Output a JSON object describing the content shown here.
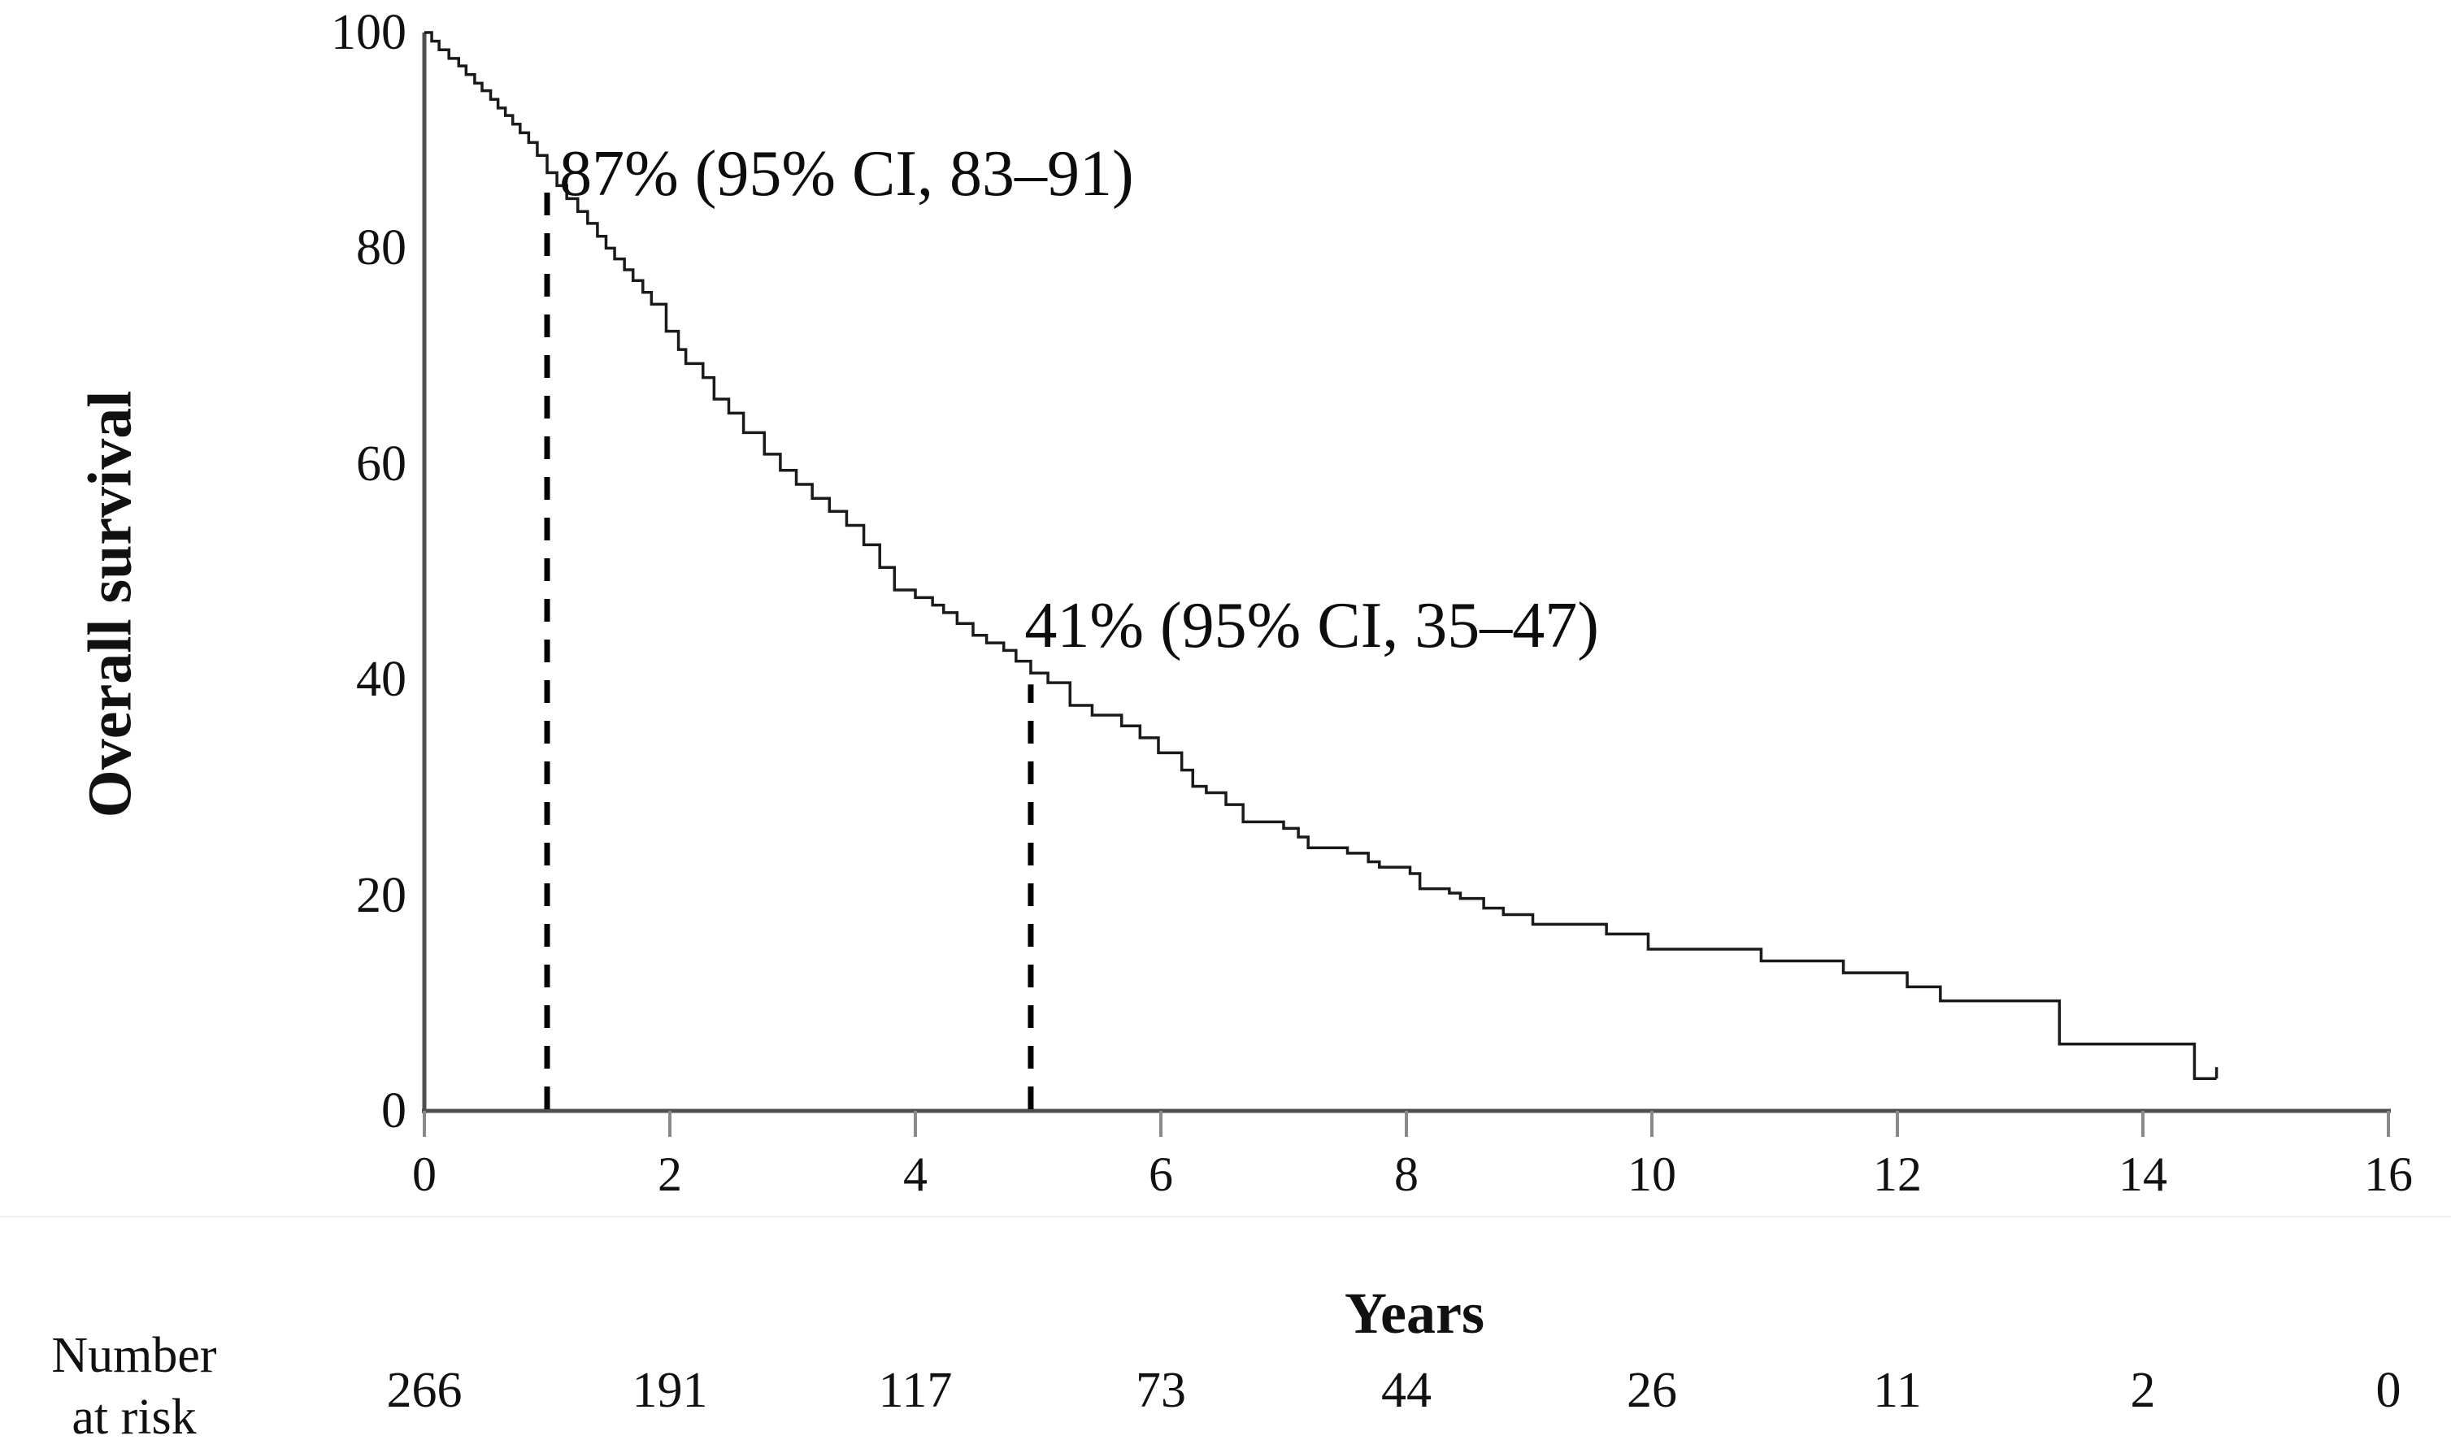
{
  "chart_data": {
    "type": "line",
    "subtype": "kaplan-meier-step",
    "title": "",
    "xlabel": "Years",
    "ylabel": "Overall survival",
    "xlim": [
      0,
      16
    ],
    "ylim": [
      0,
      100
    ],
    "x_ticks": [
      0,
      2,
      4,
      6,
      8,
      10,
      12,
      14,
      16
    ],
    "y_ticks": [
      0,
      20,
      40,
      60,
      80,
      100
    ],
    "grid": false,
    "legend": "none",
    "series_name": "Overall survival",
    "step_points": [
      [
        0,
        100
      ],
      [
        0.06,
        99.2
      ],
      [
        0.12,
        98.4
      ],
      [
        0.2,
        97.6
      ],
      [
        0.28,
        96.9
      ],
      [
        0.34,
        96.1
      ],
      [
        0.41,
        95.3
      ],
      [
        0.47,
        94.6
      ],
      [
        0.54,
        93.8
      ],
      [
        0.6,
        93.0
      ],
      [
        0.66,
        92.3
      ],
      [
        0.72,
        91.5
      ],
      [
        0.78,
        90.7
      ],
      [
        0.85,
        89.8
      ],
      [
        0.92,
        88.6
      ],
      [
        1.0,
        87.0
      ],
      [
        1.08,
        85.8
      ],
      [
        1.16,
        84.6
      ],
      [
        1.25,
        83.4
      ],
      [
        1.33,
        82.3
      ],
      [
        1.41,
        81.1
      ],
      [
        1.48,
        80.0
      ],
      [
        1.55,
        79.0
      ],
      [
        1.63,
        78.0
      ],
      [
        1.7,
        77.0
      ],
      [
        1.78,
        75.9
      ],
      [
        1.85,
        74.8
      ],
      [
        1.97,
        72.3
      ],
      [
        2.07,
        70.6
      ],
      [
        2.13,
        69.3
      ],
      [
        2.27,
        68.0
      ],
      [
        2.36,
        66.0
      ],
      [
        2.48,
        64.7
      ],
      [
        2.6,
        62.9
      ],
      [
        2.77,
        60.9
      ],
      [
        2.9,
        59.4
      ],
      [
        3.03,
        58.1
      ],
      [
        3.16,
        56.8
      ],
      [
        3.3,
        55.6
      ],
      [
        3.44,
        54.3
      ],
      [
        3.58,
        52.5
      ],
      [
        3.71,
        50.4
      ],
      [
        3.83,
        48.3
      ],
      [
        4.0,
        47.6
      ],
      [
        4.14,
        46.9
      ],
      [
        4.23,
        46.2
      ],
      [
        4.34,
        45.2
      ],
      [
        4.47,
        44.1
      ],
      [
        4.58,
        43.4
      ],
      [
        4.72,
        42.7
      ],
      [
        4.82,
        41.7
      ],
      [
        4.94,
        40.6
      ],
      [
        5.08,
        39.7
      ],
      [
        5.26,
        37.6
      ],
      [
        5.44,
        36.7
      ],
      [
        5.68,
        35.7
      ],
      [
        5.83,
        34.6
      ],
      [
        5.98,
        33.2
      ],
      [
        6.17,
        31.6
      ],
      [
        6.26,
        30.1
      ],
      [
        6.37,
        29.5
      ],
      [
        6.53,
        28.4
      ],
      [
        6.67,
        26.8
      ],
      [
        7.0,
        26.2
      ],
      [
        7.12,
        25.4
      ],
      [
        7.2,
        24.4
      ],
      [
        7.52,
        23.9
      ],
      [
        7.69,
        23.1
      ],
      [
        7.78,
        22.6
      ],
      [
        8.03,
        22.0
      ],
      [
        8.11,
        20.6
      ],
      [
        8.35,
        20.2
      ],
      [
        8.44,
        19.7
      ],
      [
        8.63,
        18.8
      ],
      [
        8.79,
        18.2
      ],
      [
        9.03,
        17.3
      ],
      [
        9.63,
        16.4
      ],
      [
        9.97,
        15.0
      ],
      [
        10.89,
        13.9
      ],
      [
        11.56,
        12.8
      ],
      [
        12.08,
        11.5
      ],
      [
        12.35,
        10.2
      ],
      [
        13.32,
        6.2
      ],
      [
        14.42,
        3.0
      ],
      [
        14.6,
        3.0
      ]
    ],
    "annotations": [
      {
        "text": "87% (95% CI, 83–91)",
        "x_year": 1.1,
        "top_pct": 90.3
      },
      {
        "text": "41% (95% CI, 35–47)",
        "x_year": 4.89,
        "top_pct": 48.4
      }
    ],
    "dashed_lines": [
      {
        "x_year": 1.0,
        "top_pct": 87.0
      },
      {
        "x_year": 4.94,
        "top_pct": 40.6
      }
    ],
    "risk_table": {
      "label_line1": "Number",
      "label_line2": "at risk",
      "times": [
        0,
        2,
        4,
        6,
        8,
        10,
        12,
        14,
        16
      ],
      "values": [
        266,
        191,
        117,
        73,
        44,
        26,
        11,
        2,
        0
      ]
    }
  },
  "colors": {
    "curve": "#1a1a1a",
    "axis": "#4f4f4f",
    "tick": "#8a8a8a",
    "dashed": "#000000",
    "text": "#111111"
  }
}
